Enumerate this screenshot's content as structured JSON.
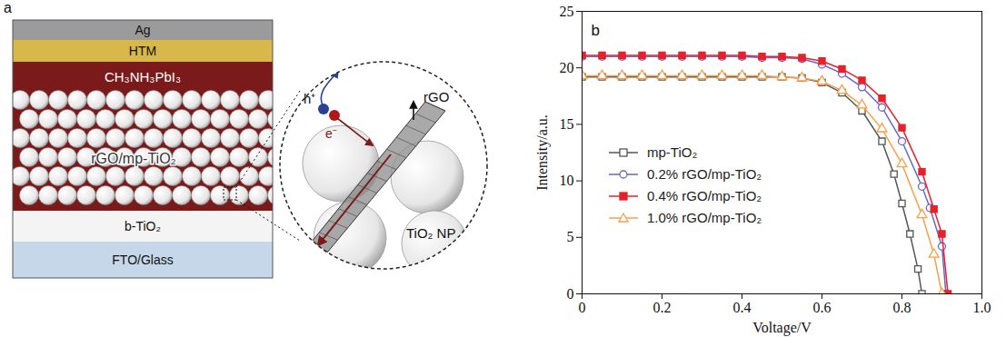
{
  "diagram": {
    "panel_label": "a",
    "layers": [
      "Ag",
      "HTM",
      "CH₃NH₃PbI₃",
      "rGO/mp-TiO₂",
      "b-TiO₂",
      "FTO/Glass"
    ],
    "zoom": {
      "hole": "h⁺",
      "electron": "e⁻",
      "sheet": "rGO",
      "particle": "TiO₂ NP"
    }
  },
  "chart_data": {
    "type": "line",
    "panel_label": "b",
    "x_label": "Voltage/V",
    "y_label": "Intensity/a.u.",
    "xlim": [
      0,
      1.0
    ],
    "xticks": [
      0,
      0.2,
      0.4,
      0.6,
      0.8,
      {
        "value": 1.0,
        "label": "1.0"
      }
    ],
    "ylim": [
      0,
      25
    ],
    "yticks": [
      0,
      5,
      10,
      15,
      20,
      25
    ],
    "grid": false,
    "legend": "center left",
    "series": [
      {
        "name": "mp-TiO₂",
        "color": "#555555",
        "marker": "square_open",
        "x": [
          0,
          0.05,
          0.1,
          0.15,
          0.2,
          0.25,
          0.3,
          0.35,
          0.4,
          0.45,
          0.5,
          0.55,
          0.6,
          0.65,
          0.7,
          0.75,
          0.78,
          0.8,
          0.82,
          0.84,
          0.85
        ],
        "values": [
          19.2,
          19.2,
          19.2,
          19.2,
          19.2,
          19.2,
          19.2,
          19.2,
          19.2,
          19.2,
          19.2,
          19.1,
          18.7,
          17.8,
          16.2,
          13.5,
          10.6,
          8.0,
          5.3,
          2.2,
          0
        ]
      },
      {
        "name": "0.2% rGO/mp-TiO₂",
        "color": "#6666cc",
        "marker": "circle_open",
        "x": [
          0,
          0.05,
          0.1,
          0.15,
          0.2,
          0.25,
          0.3,
          0.35,
          0.4,
          0.45,
          0.5,
          0.55,
          0.6,
          0.65,
          0.7,
          0.75,
          0.8,
          0.85,
          0.87,
          0.9,
          0.91
        ],
        "values": [
          21.0,
          21.0,
          21.0,
          21.0,
          21.0,
          21.0,
          21.0,
          21.0,
          21.0,
          20.9,
          20.9,
          20.8,
          20.3,
          19.5,
          18.3,
          16.5,
          13.5,
          9.5,
          7.6,
          4.2,
          0
        ]
      },
      {
        "name": "0.4% rGO/mp-TiO₂",
        "color": "#e8202a",
        "marker": "square",
        "x": [
          0,
          0.05,
          0.1,
          0.15,
          0.2,
          0.25,
          0.3,
          0.35,
          0.4,
          0.45,
          0.5,
          0.55,
          0.6,
          0.65,
          0.7,
          0.75,
          0.8,
          0.85,
          0.88,
          0.9,
          0.915
        ],
        "values": [
          21.1,
          21.1,
          21.1,
          21.1,
          21.1,
          21.1,
          21.1,
          21.1,
          21.1,
          21.0,
          21.0,
          20.9,
          20.6,
          19.9,
          18.9,
          17.3,
          14.7,
          10.8,
          7.5,
          5.3,
          0
        ]
      },
      {
        "name": "1.0% rGO/mp-TiO₂",
        "color": "#f7a04a",
        "marker": "triangle_open",
        "x": [
          0,
          0.05,
          0.1,
          0.15,
          0.2,
          0.25,
          0.3,
          0.35,
          0.4,
          0.45,
          0.5,
          0.55,
          0.6,
          0.65,
          0.7,
          0.75,
          0.8,
          0.85,
          0.88,
          0.9
        ],
        "values": [
          19.3,
          19.3,
          19.3,
          19.3,
          19.3,
          19.3,
          19.3,
          19.3,
          19.3,
          19.3,
          19.2,
          19.1,
          18.8,
          18.0,
          16.7,
          14.6,
          11.5,
          7.0,
          3.5,
          0
        ]
      }
    ]
  }
}
